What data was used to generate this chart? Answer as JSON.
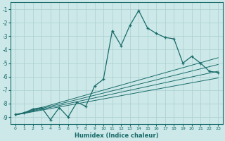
{
  "xlabel": "Humidex (Indice chaleur)",
  "x_data": [
    0,
    1,
    2,
    3,
    4,
    5,
    6,
    7,
    8,
    9,
    10,
    11,
    12,
    13,
    14,
    15,
    16,
    17,
    18,
    19,
    20,
    21,
    22,
    23
  ],
  "y_main": [
    -8.8,
    -8.7,
    -8.4,
    -8.3,
    -9.2,
    -8.3,
    -9.0,
    -7.9,
    -8.2,
    -6.7,
    -6.2,
    -2.6,
    -3.7,
    -2.2,
    -1.1,
    -2.4,
    -2.8,
    -3.1,
    -3.2,
    -5.0,
    -4.5,
    -5.0,
    -5.6,
    -5.7
  ],
  "line_color": "#1a6b6b",
  "bg_color": "#cce8e8",
  "grid_color": "#aacfcf",
  "ylim": [
    -9.5,
    -0.5
  ],
  "xlim": [
    -0.5,
    23.5
  ],
  "yticks": [
    -1,
    -2,
    -3,
    -4,
    -5,
    -6,
    -7,
    -8,
    -9
  ],
  "xticks": [
    0,
    1,
    2,
    3,
    4,
    5,
    6,
    7,
    8,
    9,
    10,
    11,
    12,
    13,
    14,
    15,
    16,
    17,
    18,
    19,
    20,
    21,
    22,
    23
  ],
  "reg_lines": [
    {
      "x0": 0,
      "y0": -8.85,
      "x1": 23,
      "y1": -4.6
    },
    {
      "x0": 0,
      "y0": -8.85,
      "x1": 23,
      "y1": -5.1
    },
    {
      "x0": 0,
      "y0": -8.85,
      "x1": 23,
      "y1": -5.6
    },
    {
      "x0": 0,
      "y0": -8.85,
      "x1": 23,
      "y1": -6.1
    }
  ]
}
